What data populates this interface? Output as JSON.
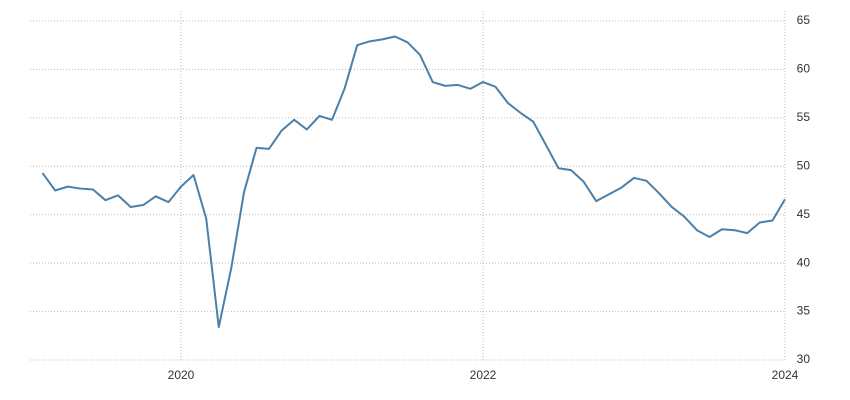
{
  "chart_data": {
    "type": "line",
    "x": [
      2019.083,
      2019.167,
      2019.25,
      2019.333,
      2019.417,
      2019.5,
      2019.583,
      2019.667,
      2019.75,
      2019.833,
      2019.917,
      2020,
      2020.083,
      2020.167,
      2020.25,
      2020.333,
      2020.417,
      2020.5,
      2020.583,
      2020.667,
      2020.75,
      2020.833,
      2020.917,
      2021,
      2021.083,
      2021.167,
      2021.25,
      2021.333,
      2021.417,
      2021.5,
      2021.583,
      2021.667,
      2021.75,
      2021.833,
      2021.917,
      2022,
      2022.083,
      2022.167,
      2022.25,
      2022.333,
      2022.417,
      2022.5,
      2022.583,
      2022.667,
      2022.75,
      2022.833,
      2022.917,
      2023,
      2023.083,
      2023.167,
      2023.25,
      2023.333,
      2023.417,
      2023.5,
      2023.583,
      2023.667,
      2023.75,
      2023.833,
      2023.917,
      2024
    ],
    "series": [
      {
        "color": "#4a80aa",
        "values": [
          49.3,
          47.5,
          47.9,
          47.7,
          47.6,
          46.5,
          47.0,
          45.8,
          46.0,
          46.9,
          46.3,
          47.9,
          49.1,
          44.6,
          33.4,
          39.5,
          47.3,
          51.9,
          51.8,
          53.7,
          54.8,
          53.8,
          55.2,
          54.8,
          58.0,
          62.5,
          62.9,
          63.1,
          63.4,
          62.8,
          61.5,
          58.7,
          58.3,
          58.4,
          58.0,
          58.7,
          58.2,
          56.5,
          55.5,
          54.6,
          52.2,
          49.8,
          49.6,
          48.4,
          46.4,
          47.1,
          47.8,
          48.8,
          48.5,
          47.2,
          45.8,
          44.8,
          43.4,
          42.7,
          43.5,
          43.4,
          43.1,
          44.2,
          44.4,
          46.6
        ]
      }
    ],
    "xlim": [
      2019,
      2024
    ],
    "xticks": [
      2020,
      2022,
      2024
    ],
    "ylim": [
      30,
      65
    ],
    "yticks": [
      30,
      35,
      40,
      45,
      50,
      55,
      60,
      65
    ],
    "grid": true
  }
}
